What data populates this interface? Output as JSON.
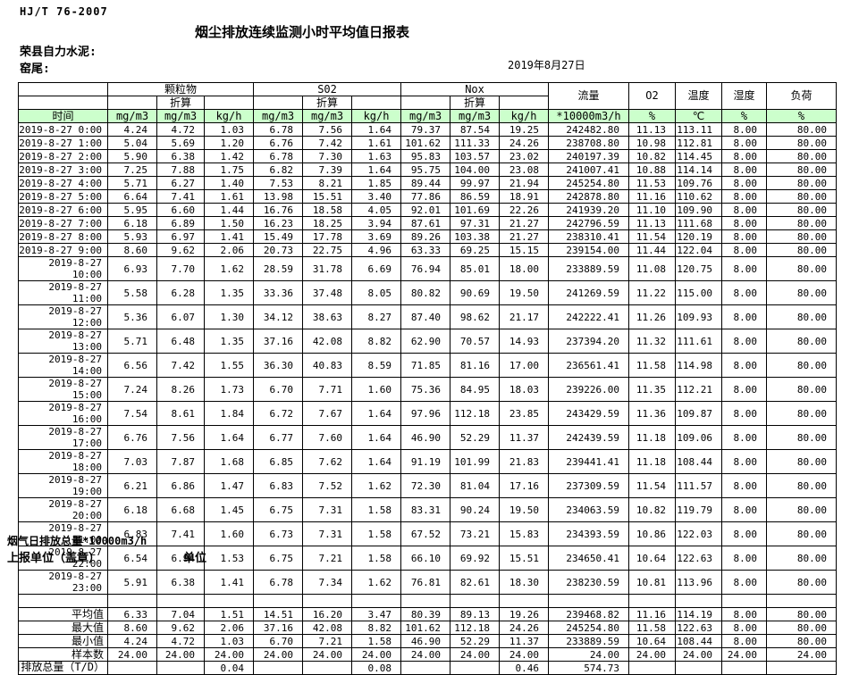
{
  "page": {
    "standard": "HJ/T 76-2007",
    "title": "烟尘排放连续监测小时平均值日报表",
    "company": "荣县自力水泥:",
    "location": "窑尾:",
    "date": "2019年8月27日"
  },
  "colors": {
    "header_green": "#ccffcc",
    "border": "#000000",
    "background": "#ffffff"
  },
  "table": {
    "time_label": "时间",
    "converted_label": "折算",
    "groups": {
      "pm": "颗粒物",
      "so2": "S02",
      "nox": "Nox"
    },
    "flow_label": "流量",
    "o2_label": "O2",
    "temp_label": "温度",
    "humidity_label": "湿度",
    "load_label": "负荷",
    "units": {
      "mgm3": "mg/m3",
      "kgh": "kg/h",
      "flow": "*10000m3/h",
      "percent": "%",
      "celsius": "℃"
    },
    "rows": [
      [
        "2019-8-27  0:00",
        "4.24",
        "4.72",
        "1.03",
        "6.78",
        "7.56",
        "1.64",
        "79.37",
        "87.54",
        "19.25",
        "242482.80",
        "11.13",
        "113.11",
        "8.00",
        "80.00"
      ],
      [
        "2019-8-27  1:00",
        "5.04",
        "5.69",
        "1.20",
        "6.76",
        "7.42",
        "1.61",
        "101.62",
        "111.33",
        "24.26",
        "238708.80",
        "10.98",
        "112.81",
        "8.00",
        "80.00"
      ],
      [
        "2019-8-27  2:00",
        "5.90",
        "6.38",
        "1.42",
        "6.78",
        "7.30",
        "1.63",
        "95.83",
        "103.57",
        "23.02",
        "240197.39",
        "10.82",
        "114.45",
        "8.00",
        "80.00"
      ],
      [
        "2019-8-27  3:00",
        "7.25",
        "7.88",
        "1.75",
        "6.82",
        "7.39",
        "1.64",
        "95.75",
        "104.00",
        "23.08",
        "241007.41",
        "10.88",
        "114.14",
        "8.00",
        "80.00"
      ],
      [
        "2019-8-27  4:00",
        "5.71",
        "6.27",
        "1.40",
        "7.53",
        "8.21",
        "1.85",
        "89.44",
        "99.97",
        "21.94",
        "245254.80",
        "11.53",
        "109.76",
        "8.00",
        "80.00"
      ],
      [
        "2019-8-27  5:00",
        "6.64",
        "7.41",
        "1.61",
        "13.98",
        "15.51",
        "3.40",
        "77.86",
        "86.59",
        "18.91",
        "242878.80",
        "11.16",
        "110.62",
        "8.00",
        "80.00"
      ],
      [
        "2019-8-27  6:00",
        "5.95",
        "6.60",
        "1.44",
        "16.76",
        "18.58",
        "4.05",
        "92.01",
        "101.69",
        "22.26",
        "241939.20",
        "11.10",
        "109.90",
        "8.00",
        "80.00"
      ],
      [
        "2019-8-27  7:00",
        "6.18",
        "6.89",
        "1.50",
        "16.23",
        "18.25",
        "3.94",
        "87.61",
        "97.31",
        "21.27",
        "242796.59",
        "11.13",
        "111.68",
        "8.00",
        "80.00"
      ],
      [
        "2019-8-27  8:00",
        "5.93",
        "6.97",
        "1.41",
        "15.49",
        "17.78",
        "3.69",
        "89.26",
        "103.38",
        "21.27",
        "238310.41",
        "11.54",
        "120.19",
        "8.00",
        "80.00"
      ],
      [
        "2019-8-27  9:00",
        "8.60",
        "9.62",
        "2.06",
        "20.73",
        "22.75",
        "4.96",
        "63.33",
        "69.25",
        "15.15",
        "239154.00",
        "11.44",
        "122.04",
        "8.00",
        "80.00"
      ],
      [
        "2019-8-27 10:00",
        "6.93",
        "7.70",
        "1.62",
        "28.59",
        "31.78",
        "6.69",
        "76.94",
        "85.01",
        "18.00",
        "233889.59",
        "11.08",
        "120.75",
        "8.00",
        "80.00"
      ],
      [
        "2019-8-27 11:00",
        "5.58",
        "6.28",
        "1.35",
        "33.36",
        "37.48",
        "8.05",
        "80.82",
        "90.69",
        "19.50",
        "241269.59",
        "11.22",
        "115.00",
        "8.00",
        "80.00"
      ],
      [
        "2019-8-27 12:00",
        "5.36",
        "6.07",
        "1.30",
        "34.12",
        "38.63",
        "8.27",
        "87.40",
        "98.62",
        "21.17",
        "242222.41",
        "11.26",
        "109.93",
        "8.00",
        "80.00"
      ],
      [
        "2019-8-27 13:00",
        "5.71",
        "6.48",
        "1.35",
        "37.16",
        "42.08",
        "8.82",
        "62.90",
        "70.57",
        "14.93",
        "237394.20",
        "11.32",
        "111.61",
        "8.00",
        "80.00"
      ],
      [
        "2019-8-27 14:00",
        "6.56",
        "7.42",
        "1.55",
        "36.30",
        "40.83",
        "8.59",
        "71.85",
        "81.16",
        "17.00",
        "236561.41",
        "11.58",
        "114.98",
        "8.00",
        "80.00"
      ],
      [
        "2019-8-27 15:00",
        "7.24",
        "8.26",
        "1.73",
        "6.70",
        "7.71",
        "1.60",
        "75.36",
        "84.95",
        "18.03",
        "239226.00",
        "11.35",
        "112.21",
        "8.00",
        "80.00"
      ],
      [
        "2019-8-27 16:00",
        "7.54",
        "8.61",
        "1.84",
        "6.72",
        "7.67",
        "1.64",
        "97.96",
        "112.18",
        "23.85",
        "243429.59",
        "11.36",
        "109.87",
        "8.00",
        "80.00"
      ],
      [
        "2019-8-27 17:00",
        "6.76",
        "7.56",
        "1.64",
        "6.77",
        "7.60",
        "1.64",
        "46.90",
        "52.29",
        "11.37",
        "242439.59",
        "11.18",
        "109.06",
        "8.00",
        "80.00"
      ],
      [
        "2019-8-27 18:00",
        "7.03",
        "7.87",
        "1.68",
        "6.85",
        "7.62",
        "1.64",
        "91.19",
        "101.99",
        "21.83",
        "239441.41",
        "11.18",
        "108.44",
        "8.00",
        "80.00"
      ],
      [
        "2019-8-27 19:00",
        "6.21",
        "6.86",
        "1.47",
        "6.83",
        "7.52",
        "1.62",
        "72.30",
        "81.04",
        "17.16",
        "237309.59",
        "11.54",
        "111.57",
        "8.00",
        "80.00"
      ],
      [
        "2019-8-27 20:00",
        "6.18",
        "6.68",
        "1.45",
        "6.75",
        "7.31",
        "1.58",
        "83.31",
        "90.24",
        "19.50",
        "234063.59",
        "10.82",
        "119.79",
        "8.00",
        "80.00"
      ],
      [
        "2019-8-27 21:00",
        "6.83",
        "7.41",
        "1.60",
        "6.73",
        "7.31",
        "1.58",
        "67.52",
        "73.21",
        "15.83",
        "234393.59",
        "10.86",
        "122.03",
        "8.00",
        "80.00"
      ],
      [
        "2019-8-27 22:00",
        "6.54",
        "6.94",
        "1.53",
        "6.75",
        "7.21",
        "1.58",
        "66.10",
        "69.92",
        "15.51",
        "234650.41",
        "10.64",
        "122.63",
        "8.00",
        "80.00"
      ],
      [
        "2019-8-27 23:00",
        "5.91",
        "6.38",
        "1.41",
        "6.78",
        "7.34",
        "1.62",
        "76.81",
        "82.61",
        "18.30",
        "238230.59",
        "10.81",
        "113.96",
        "8.00",
        "80.00"
      ]
    ],
    "summary": [
      {
        "label": "平均值",
        "values": [
          "6.33",
          "7.04",
          "1.51",
          "14.51",
          "16.20",
          "3.47",
          "80.39",
          "89.13",
          "19.26",
          "239468.82",
          "11.16",
          "114.19",
          "8.00",
          "80.00"
        ]
      },
      {
        "label": "最大值",
        "values": [
          "8.60",
          "9.62",
          "2.06",
          "37.16",
          "42.08",
          "8.82",
          "101.62",
          "112.18",
          "24.26",
          "245254.80",
          "11.58",
          "122.63",
          "8.00",
          "80.00"
        ]
      },
      {
        "label": "最小值",
        "values": [
          "4.24",
          "4.72",
          "1.03",
          "6.70",
          "7.21",
          "1.58",
          "46.90",
          "52.29",
          "11.37",
          "233889.59",
          "10.64",
          "108.44",
          "8.00",
          "80.00"
        ]
      },
      {
        "label": "样本数",
        "values": [
          "24.00",
          "24.00",
          "24.00",
          "24.00",
          "24.00",
          "24.00",
          "24.00",
          "24.00",
          "24.00",
          "24.00",
          "24.00",
          "24.00",
          "24.00",
          "24.00"
        ]
      },
      {
        "label": "日排放总量（T/D）",
        "values": [
          "",
          "",
          "0.04",
          "",
          "",
          "0.08",
          "",
          "",
          "0.46",
          "574.73",
          "",
          "",
          "",
          ""
        ]
      }
    ]
  },
  "footer": {
    "note": "烟气日排放总量*10000m3/h",
    "report_unit": "上报单位（盖章）",
    "unit": "单位"
  }
}
